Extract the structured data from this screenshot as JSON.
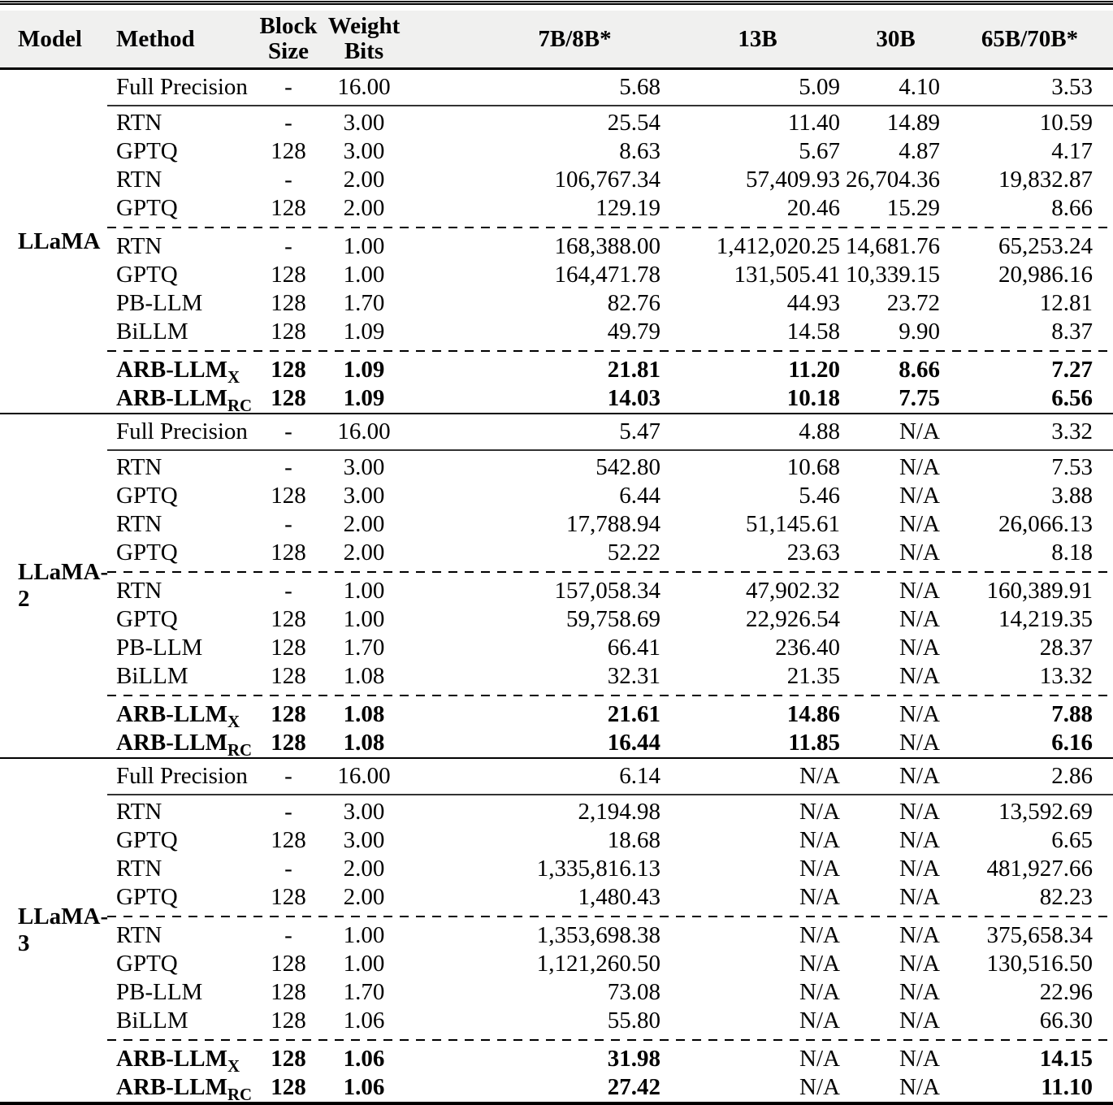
{
  "header": {
    "model": "Model",
    "method": "Method",
    "block": "Block Size",
    "weight": "Weight Bits",
    "b7": "7B/8B*",
    "b13": "13B",
    "b30": "30B",
    "b65": "65B/70B*"
  },
  "colors": {
    "header_bg": "#f0f0ef",
    "text": "#000000",
    "background": "#ffffff"
  },
  "sections": [
    {
      "model": "LLaMA",
      "rows": [
        {
          "method": "Full Precision",
          "block": "-",
          "bits": "16.00",
          "b7": "5.68",
          "b13": "5.09",
          "b30": "4.10",
          "b65": "3.53"
        },
        {
          "method": "RTN",
          "block": "-",
          "bits": "3.00",
          "b7": "25.54",
          "b13": "11.40",
          "b30": "14.89",
          "b65": "10.59"
        },
        {
          "method": "GPTQ",
          "block": "128",
          "bits": "3.00",
          "b7": "8.63",
          "b13": "5.67",
          "b30": "4.87",
          "b65": "4.17"
        },
        {
          "method": "RTN",
          "block": "-",
          "bits": "2.00",
          "b7": "106,767.34",
          "b13": "57,409.93",
          "b30": "26,704.36",
          "b65": "19,832.87"
        },
        {
          "method": "GPTQ",
          "block": "128",
          "bits": "2.00",
          "b7": "129.19",
          "b13": "20.46",
          "b30": "15.29",
          "b65": "8.66"
        },
        {
          "method": "RTN",
          "block": "-",
          "bits": "1.00",
          "b7": "168,388.00",
          "b13": "1,412,020.25",
          "b30": "14,681.76",
          "b65": "65,253.24"
        },
        {
          "method": "GPTQ",
          "block": "128",
          "bits": "1.00",
          "b7": "164,471.78",
          "b13": "131,505.41",
          "b30": "10,339.15",
          "b65": "20,986.16"
        },
        {
          "method": "PB-LLM",
          "block": "128",
          "bits": "1.70",
          "b7": "82.76",
          "b13": "44.93",
          "b30": "23.72",
          "b65": "12.81"
        },
        {
          "method": "BiLLM",
          "block": "128",
          "bits": "1.09",
          "b7": "49.79",
          "b13": "14.58",
          "b30": "9.90",
          "b65": "8.37"
        },
        {
          "method": "ARB-LLM",
          "method_sub": "X",
          "block": "128",
          "bits": "1.09",
          "b7": "21.81",
          "b13": "11.20",
          "b30": "8.66",
          "b65": "7.27",
          "bold": true
        },
        {
          "method": "ARB-LLM",
          "method_sub": "RC",
          "block": "128",
          "bits": "1.09",
          "b7": "14.03",
          "b13": "10.18",
          "b30": "7.75",
          "b65": "6.56",
          "bold": true
        }
      ]
    },
    {
      "model": "LLaMA-2",
      "rows": [
        {
          "method": "Full Precision",
          "block": "-",
          "bits": "16.00",
          "b7": "5.47",
          "b13": "4.88",
          "b30": "N/A",
          "b65": "3.32"
        },
        {
          "method": "RTN",
          "block": "-",
          "bits": "3.00",
          "b7": "542.80",
          "b13": "10.68",
          "b30": "N/A",
          "b65": "7.53"
        },
        {
          "method": "GPTQ",
          "block": "128",
          "bits": "3.00",
          "b7": "6.44",
          "b13": "5.46",
          "b30": "N/A",
          "b65": "3.88"
        },
        {
          "method": "RTN",
          "block": "-",
          "bits": "2.00",
          "b7": "17,788.94",
          "b13": "51,145.61",
          "b30": "N/A",
          "b65": "26,066.13"
        },
        {
          "method": "GPTQ",
          "block": "128",
          "bits": "2.00",
          "b7": "52.22",
          "b13": "23.63",
          "b30": "N/A",
          "b65": "8.18"
        },
        {
          "method": "RTN",
          "block": "-",
          "bits": "1.00",
          "b7": "157,058.34",
          "b13": "47,902.32",
          "b30": "N/A",
          "b65": "160,389.91"
        },
        {
          "method": "GPTQ",
          "block": "128",
          "bits": "1.00",
          "b7": "59,758.69",
          "b13": "22,926.54",
          "b30": "N/A",
          "b65": "14,219.35"
        },
        {
          "method": "PB-LLM",
          "block": "128",
          "bits": "1.70",
          "b7": "66.41",
          "b13": "236.40",
          "b30": "N/A",
          "b65": "28.37"
        },
        {
          "method": "BiLLM",
          "block": "128",
          "bits": "1.08",
          "b7": "32.31",
          "b13": "21.35",
          "b30": "N/A",
          "b65": "13.32"
        },
        {
          "method": "ARB-LLM",
          "method_sub": "X",
          "block": "128",
          "bits": "1.08",
          "b7": "21.61",
          "b13": "14.86",
          "b30": "N/A",
          "b65": "7.88",
          "bold": true
        },
        {
          "method": "ARB-LLM",
          "method_sub": "RC",
          "block": "128",
          "bits": "1.08",
          "b7": "16.44",
          "b13": "11.85",
          "b30": "N/A",
          "b65": "6.16",
          "bold": true
        }
      ]
    },
    {
      "model": "LLaMA-3",
      "rows": [
        {
          "method": "Full Precision",
          "block": "-",
          "bits": "16.00",
          "b7": "6.14",
          "b13": "N/A",
          "b30": "N/A",
          "b65": "2.86"
        },
        {
          "method": "RTN",
          "block": "-",
          "bits": "3.00",
          "b7": "2,194.98",
          "b13": "N/A",
          "b30": "N/A",
          "b65": "13,592.69"
        },
        {
          "method": "GPTQ",
          "block": "128",
          "bits": "3.00",
          "b7": "18.68",
          "b13": "N/A",
          "b30": "N/A",
          "b65": "6.65"
        },
        {
          "method": "RTN",
          "block": "-",
          "bits": "2.00",
          "b7": "1,335,816.13",
          "b13": "N/A",
          "b30": "N/A",
          "b65": "481,927.66"
        },
        {
          "method": "GPTQ",
          "block": "128",
          "bits": "2.00",
          "b7": "1,480.43",
          "b13": "N/A",
          "b30": "N/A",
          "b65": "82.23"
        },
        {
          "method": "RTN",
          "block": "-",
          "bits": "1.00",
          "b7": "1,353,698.38",
          "b13": "N/A",
          "b30": "N/A",
          "b65": "375,658.34"
        },
        {
          "method": "GPTQ",
          "block": "128",
          "bits": "1.00",
          "b7": "1,121,260.50",
          "b13": "N/A",
          "b30": "N/A",
          "b65": "130,516.50"
        },
        {
          "method": "PB-LLM",
          "block": "128",
          "bits": "1.70",
          "b7": "73.08",
          "b13": "N/A",
          "b30": "N/A",
          "b65": "22.96"
        },
        {
          "method": "BiLLM",
          "block": "128",
          "bits": "1.06",
          "b7": "55.80",
          "b13": "N/A",
          "b30": "N/A",
          "b65": "66.30"
        },
        {
          "method": "ARB-LLM",
          "method_sub": "X",
          "block": "128",
          "bits": "1.06",
          "b7": "31.98",
          "b13": "N/A",
          "b30": "N/A",
          "b65": "14.15",
          "bold": true
        },
        {
          "method": "ARB-LLM",
          "method_sub": "RC",
          "block": "128",
          "bits": "1.06",
          "b7": "27.42",
          "b13": "N/A",
          "b30": "N/A",
          "b65": "11.10",
          "bold": true
        }
      ]
    }
  ]
}
